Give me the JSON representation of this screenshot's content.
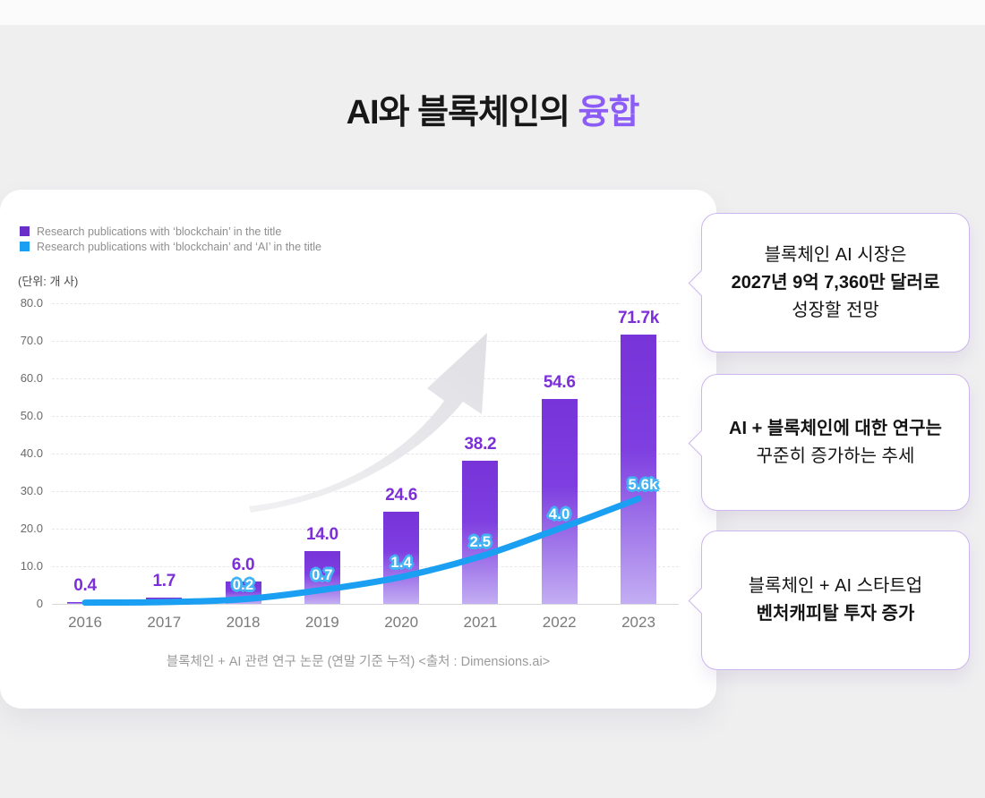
{
  "page": {
    "title_prefix": "AI와 블록체인의 ",
    "title_accent": "융합"
  },
  "colors": {
    "accent_purple": "#8B5CF6",
    "bar_purple": "#7C2FD8",
    "line_blue": "#1A9FF2",
    "legend_purple": "#6B2FC9",
    "background": "#EFEFF0"
  },
  "chart_data": {
    "type": "bar+line",
    "unit_label": "(단위: 개 사)",
    "categories": [
      "2016",
      "2017",
      "2018",
      "2019",
      "2020",
      "2021",
      "2022",
      "2023"
    ],
    "series": [
      {
        "name": "Research publications with ‘blockchain’ in the title",
        "type": "bar",
        "color": "#6B2FC9",
        "values": [
          0.4,
          1.7,
          6.0,
          14.0,
          24.6,
          38.2,
          54.6,
          71.7
        ],
        "labels": [
          "0.4",
          "1.7",
          "6.0",
          "14.0",
          "24.6",
          "38.2",
          "54.6",
          "71.7k"
        ]
      },
      {
        "name": "Research publications with ‘blockchain’ and ‘AI’ in the title",
        "type": "line",
        "color": "#1A9FF2",
        "values": [
          0.02,
          0.05,
          0.2,
          0.7,
          1.4,
          2.5,
          4.0,
          5.6
        ],
        "labels": [
          null,
          null,
          "0.2",
          "0.7",
          "1.4",
          "2.5",
          "4.0",
          "5.6k"
        ]
      }
    ],
    "y_ticks": [
      "80.0",
      "70.0",
      "60.0",
      "50.0",
      "40.0",
      "30.0",
      "20.0",
      "10.0",
      "0"
    ],
    "ylim": [
      0,
      80
    ],
    "grid": "dashed horizontal",
    "legend_position": "top-left",
    "caption": "블록체인 + AI 관련 연구 논문 (연말 기준 누적) <출처 : Dimensions.ai>"
  },
  "callouts": [
    {
      "lines": [
        {
          "text": "블록체인 AI 시장은",
          "bold": false
        },
        {
          "text": "2027년 9억 7,360만 달러로",
          "bold": true
        },
        {
          "text": "성장할 전망",
          "bold": false
        }
      ]
    },
    {
      "lines": [
        {
          "text": "AI + 블록체인에 대한 연구는",
          "bold": true
        },
        {
          "text": "꾸준히 증가하는 추세",
          "bold": false
        }
      ]
    },
    {
      "lines": [
        {
          "text": "블록체인 + AI 스타트업",
          "bold": false
        },
        {
          "text": "벤처캐피탈 투자 증가",
          "bold": true
        }
      ]
    }
  ]
}
